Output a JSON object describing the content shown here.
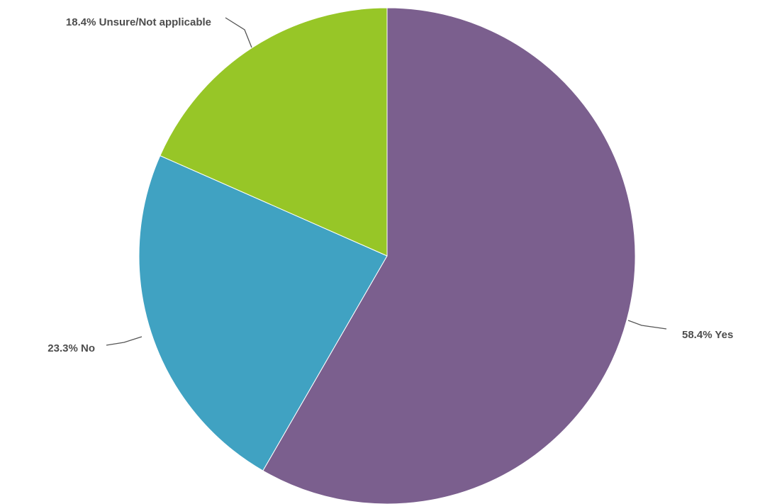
{
  "chart_data": {
    "type": "pie",
    "title": "",
    "slices": [
      {
        "label": "Yes",
        "value": 58.4,
        "display": "58.4% Yes",
        "color": "#7b5f8e"
      },
      {
        "label": "No",
        "value": 23.3,
        "display": "23.3% No",
        "color": "#40a2c2"
      },
      {
        "label": "Unsure/Not applicable",
        "value": 18.4,
        "display": "18.4% Unsure/Not applicable",
        "color": "#97c627"
      }
    ]
  }
}
